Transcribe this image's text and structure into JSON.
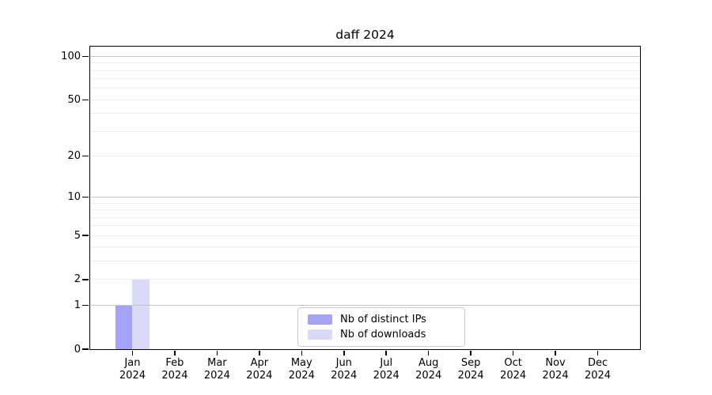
{
  "figure": {
    "background": "#ffffff"
  },
  "chart_data": {
    "type": "bar",
    "title": "daff 2024",
    "x_axis": {
      "categories": [
        "Jan",
        "Feb",
        "Mar",
        "Apr",
        "May",
        "Jun",
        "Jul",
        "Aug",
        "Sep",
        "Oct",
        "Nov",
        "Dec"
      ],
      "year_label": "2024"
    },
    "y_axis": {
      "scale": "log1p",
      "ticks": [
        0,
        1,
        2,
        5,
        10,
        20,
        50,
        100
      ],
      "major_grid_values": [
        1,
        10,
        100
      ],
      "minor_grid_values": [
        2,
        3,
        4,
        5,
        6,
        7,
        8,
        9,
        20,
        30,
        40,
        50,
        60,
        70,
        80,
        90
      ],
      "ylim": [
        0,
        117
      ],
      "grid": true
    },
    "series": [
      {
        "name": "Nb of distinct IPs",
        "color": "#a4a4f2",
        "values": [
          1,
          0,
          0,
          0,
          0,
          0,
          0,
          0,
          0,
          0,
          0,
          0
        ]
      },
      {
        "name": "Nb of downloads",
        "color": "#d9d9f8",
        "values": [
          2,
          0,
          0,
          0,
          0,
          0,
          0,
          0,
          0,
          0,
          0,
          0
        ]
      }
    ],
    "legend": {
      "position": "lower center"
    }
  },
  "colors": {
    "spine": "#000000",
    "major_grid": "#c4c4c4",
    "minor_grid": "#ececec",
    "legend_border": "#cccccc",
    "text": "#000000"
  }
}
